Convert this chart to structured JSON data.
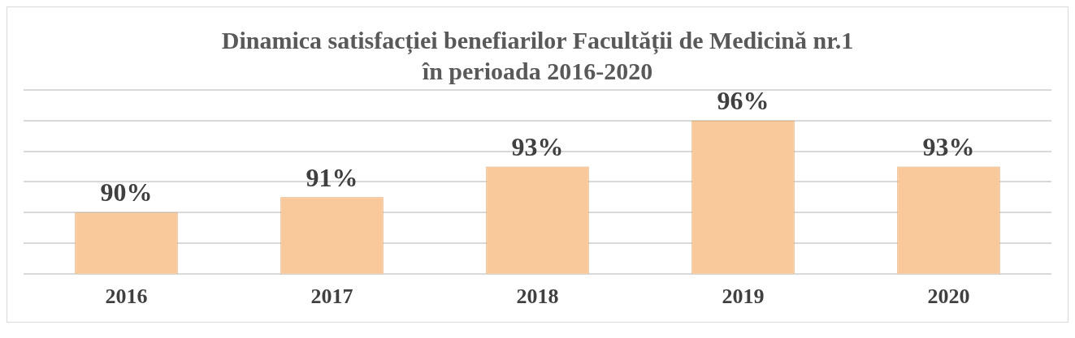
{
  "chart_data": {
    "type": "bar",
    "title": "Dinamica satisfacției benefiarilor Facultății  de Medicină nr.1\nîn perioada 2016-2020",
    "categories": [
      "2016",
      "2017",
      "2018",
      "2019",
      "2020"
    ],
    "values": [
      90,
      91,
      93,
      96,
      93
    ],
    "value_labels": [
      "90%",
      "91%",
      "93%",
      "96%",
      "93%"
    ],
    "color": "#f9c89b",
    "ylim": [
      86,
      98
    ],
    "yticks": [
      {
        "value": 86,
        "label": null
      },
      {
        "value": 88,
        "label": null
      },
      {
        "value": 90,
        "label": null
      },
      {
        "value": 92,
        "label": null
      },
      {
        "value": 94,
        "label": null
      },
      {
        "value": 96,
        "label": null
      },
      {
        "value": 98,
        "label": null
      }
    ],
    "tick_labels": "x",
    "grid": "y",
    "legend": false
  }
}
